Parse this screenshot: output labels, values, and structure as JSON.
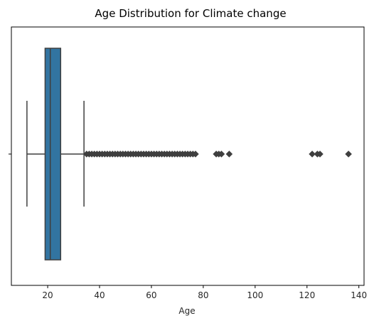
{
  "chart_data": {
    "type": "box",
    "title": "Age Distribution for Climate change",
    "xlabel": "Age",
    "ylabel": "",
    "orientation": "horizontal",
    "xlim": [
      6,
      142
    ],
    "xticks": [
      20,
      40,
      60,
      80,
      100,
      120,
      140
    ],
    "box": {
      "whisker_low": 12,
      "q1": 19,
      "median": 21,
      "q3": 25,
      "whisker_high": 34
    },
    "outliers": [
      35,
      36,
      37,
      38,
      39,
      40,
      41,
      42,
      43,
      44,
      45,
      46,
      47,
      48,
      49,
      50,
      51,
      52,
      53,
      54,
      55,
      56,
      57,
      58,
      59,
      60,
      61,
      62,
      63,
      64,
      65,
      66,
      67,
      68,
      69,
      70,
      71,
      72,
      73,
      74,
      75,
      76,
      77,
      85,
      86,
      87,
      90,
      122,
      124,
      125,
      136
    ],
    "colors": {
      "box_fill": "#3274a1",
      "line": "#3f3f3f",
      "outlier": "#3f3f3f"
    },
    "grid": false
  }
}
